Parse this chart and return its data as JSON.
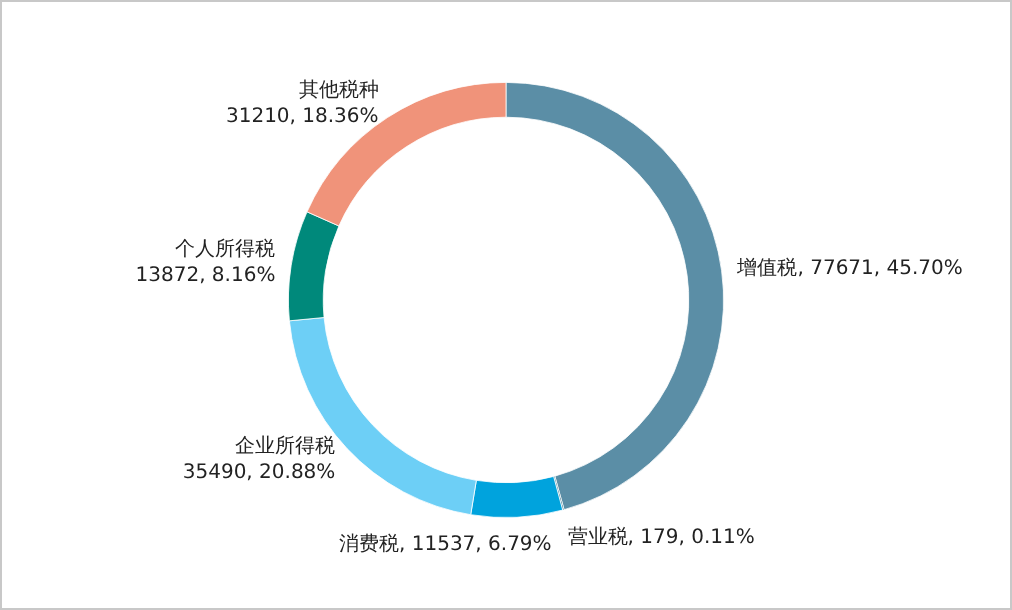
{
  "chart_data": {
    "type": "donut",
    "categories": [
      "增值税",
      "营业税",
      "消费税",
      "企业所得税",
      "个人所得税",
      "其他税种"
    ],
    "values": [
      77671,
      179,
      11537,
      35490,
      13872,
      31210
    ],
    "value_labels": [
      "77671, 45.70%",
      "179, 0.11%",
      "11537, 6.79%",
      "35490, 20.88%",
      "13872, 8.16%",
      "31210, 18.36%"
    ],
    "colors": [
      "#5b8ea6",
      "#1a5e78",
      "#00a3dd",
      "#6dcff6",
      "#00897b",
      "#f0937a"
    ],
    "legend": false
  }
}
